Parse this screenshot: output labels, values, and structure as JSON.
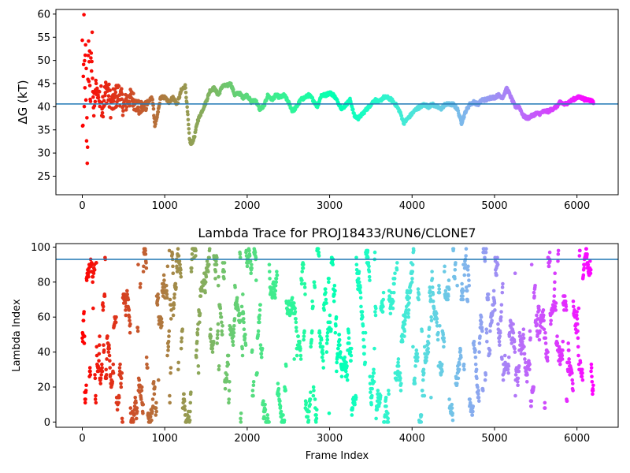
{
  "chart_data": [
    {
      "type": "scatter",
      "title": "",
      "xlabel": "",
      "ylabel": "ΔG (kT)",
      "xlim": [
        -320,
        6500
      ],
      "ylim": [
        21,
        61
      ],
      "xticks": [
        0,
        1000,
        2000,
        3000,
        4000,
        5000,
        6000
      ],
      "yticks": [
        25,
        30,
        35,
        40,
        45,
        50,
        55,
        60
      ],
      "hline": 40.6,
      "hline_color": "#1f77b4",
      "colormap": "rainbow (red at frame 0 to violet at last frame)",
      "n_frames": 6200,
      "grid": false,
      "series": [
        {
          "values_by_frame": [
            [
              0,
              50.0
            ],
            [
              10,
              28.0
            ],
            [
              20,
              55.5
            ],
            [
              30,
              37.0
            ],
            [
              40,
              48.0
            ],
            [
              60,
              33.0
            ],
            [
              80,
              52.0
            ],
            [
              100,
              43.0
            ],
            [
              120,
              52.5
            ],
            [
              140,
              38.0
            ],
            [
              160,
              44.0
            ],
            [
              200,
              42.0
            ],
            [
              250,
              41.0
            ],
            [
              300,
              44.0
            ],
            [
              350,
              40.0
            ],
            [
              400,
              42.0
            ],
            [
              450,
              43.0
            ],
            [
              500,
              40.0
            ],
            [
              550,
              41.5
            ],
            [
              600,
              42.0
            ],
            [
              650,
              40.5
            ],
            [
              700,
              39.5
            ],
            [
              750,
              40.0
            ],
            [
              800,
              41.0
            ],
            [
              850,
              42.0
            ],
            [
              880,
              36.0
            ],
            [
              900,
              37.0
            ],
            [
              950,
              42.0
            ],
            [
              1000,
              42.0
            ],
            [
              1050,
              41.0
            ],
            [
              1100,
              42.0
            ],
            [
              1150,
              40.5
            ],
            [
              1200,
              43.5
            ],
            [
              1250,
              44.5
            ],
            [
              1280,
              38.0
            ],
            [
              1300,
              33.0
            ],
            [
              1320,
              31.8
            ],
            [
              1360,
              33.5
            ],
            [
              1400,
              37.0
            ],
            [
              1450,
              39.0
            ],
            [
              1500,
              41.0
            ],
            [
              1550,
              43.5
            ],
            [
              1600,
              44.0
            ],
            [
              1650,
              42.5
            ],
            [
              1700,
              44.5
            ],
            [
              1750,
              44.5
            ],
            [
              1800,
              45.0
            ],
            [
              1850,
              42.5
            ],
            [
              1900,
              43.0
            ],
            [
              1950,
              42.0
            ],
            [
              2000,
              42.5
            ],
            [
              2050,
              41.0
            ],
            [
              2100,
              41.5
            ],
            [
              2150,
              39.5
            ],
            [
              2200,
              40.0
            ],
            [
              2250,
              42.5
            ],
            [
              2300,
              41.5
            ],
            [
              2350,
              42.5
            ],
            [
              2400,
              42.0
            ],
            [
              2450,
              42.5
            ],
            [
              2500,
              41.0
            ],
            [
              2550,
              39.0
            ],
            [
              2600,
              40.0
            ],
            [
              2650,
              41.5
            ],
            [
              2700,
              42.0
            ],
            [
              2750,
              42.5
            ],
            [
              2800,
              41.5
            ],
            [
              2850,
              40.0
            ],
            [
              2900,
              42.5
            ],
            [
              2950,
              42.5
            ],
            [
              3000,
              43.0
            ],
            [
              3050,
              42.5
            ],
            [
              3100,
              41.0
            ],
            [
              3150,
              39.5
            ],
            [
              3200,
              40.5
            ],
            [
              3250,
              41.5
            ],
            [
              3300,
              38.0
            ],
            [
              3350,
              37.5
            ],
            [
              3400,
              38.5
            ],
            [
              3450,
              39.5
            ],
            [
              3500,
              40.5
            ],
            [
              3550,
              41.5
            ],
            [
              3600,
              41.0
            ],
            [
              3650,
              42.0
            ],
            [
              3700,
              42.0
            ],
            [
              3750,
              41.5
            ],
            [
              3800,
              40.5
            ],
            [
              3850,
              39.0
            ],
            [
              3900,
              36.5
            ],
            [
              3950,
              37.5
            ],
            [
              4000,
              38.5
            ],
            [
              4050,
              39.5
            ],
            [
              4100,
              40.0
            ],
            [
              4150,
              40.5
            ],
            [
              4200,
              40.0
            ],
            [
              4250,
              40.5
            ],
            [
              4300,
              40.0
            ],
            [
              4350,
              39.5
            ],
            [
              4400,
              40.5
            ],
            [
              4450,
              40.5
            ],
            [
              4500,
              40.5
            ],
            [
              4550,
              39.5
            ],
            [
              4600,
              36.5
            ],
            [
              4650,
              39.0
            ],
            [
              4700,
              40.5
            ],
            [
              4750,
              41.0
            ],
            [
              4800,
              40.5
            ],
            [
              4850,
              41.5
            ],
            [
              4900,
              41.5
            ],
            [
              4950,
              42.0
            ],
            [
              5000,
              42.0
            ],
            [
              5050,
              42.5
            ],
            [
              5100,
              42.0
            ],
            [
              5150,
              44.0
            ],
            [
              5200,
              42.0
            ],
            [
              5250,
              40.0
            ],
            [
              5300,
              40.0
            ],
            [
              5350,
              38.0
            ],
            [
              5400,
              37.5
            ],
            [
              5450,
              38.0
            ],
            [
              5500,
              38.5
            ],
            [
              5550,
              38.5
            ],
            [
              5600,
              39.0
            ],
            [
              5650,
              39.0
            ],
            [
              5700,
              39.5
            ],
            [
              5750,
              40.0
            ],
            [
              5800,
              41.0
            ],
            [
              5850,
              40.5
            ],
            [
              5900,
              41.0
            ],
            [
              5950,
              41.5
            ],
            [
              6000,
              42.0
            ],
            [
              6050,
              42.0
            ],
            [
              6100,
              41.5
            ],
            [
              6150,
              41.5
            ],
            [
              6200,
              41.0
            ]
          ]
        }
      ]
    },
    {
      "type": "scatter",
      "title": "Lambda Trace for PROJ18433/RUN6/CLONE7",
      "xlabel": "Frame Index",
      "ylabel": "Lambda Index",
      "xlim": [
        -320,
        6500
      ],
      "ylim": [
        -3,
        102
      ],
      "xticks": [
        0,
        1000,
        2000,
        3000,
        4000,
        5000,
        6000
      ],
      "yticks": [
        0,
        20,
        40,
        60,
        80,
        100
      ],
      "hline": 93,
      "hline_color": "#1f77b4",
      "colormap": "rainbow (red at frame 0 to violet at last frame)",
      "n_frames": 6200,
      "value_range": [
        0,
        99
      ],
      "grid": false
    }
  ]
}
